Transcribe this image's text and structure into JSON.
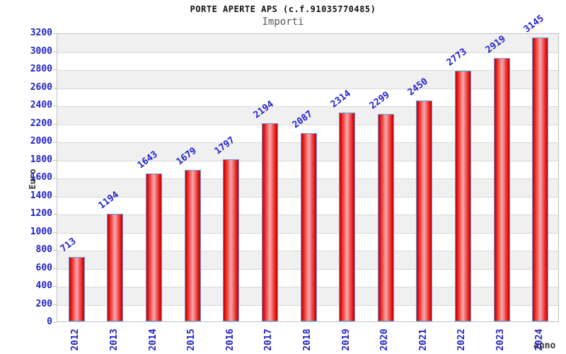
{
  "header": {
    "title": "PORTE APERTE APS (c.f.91035770485)",
    "subtitle": "Importi"
  },
  "chart_data": {
    "type": "bar",
    "title": "PORTE APERTE APS (c.f.91035770485)",
    "subtitle": "Importi",
    "categories": [
      "2012",
      "2013",
      "2014",
      "2015",
      "2016",
      "2017",
      "2018",
      "2019",
      "2020",
      "2021",
      "2022",
      "2023",
      "2024"
    ],
    "values": [
      713,
      1194,
      1643,
      1679,
      1797,
      2194,
      2087,
      2314,
      2299,
      2450,
      2773,
      2919,
      3145
    ],
    "xlabel": "anno",
    "ylabel": "Euro",
    "ylim": [
      0,
      3200
    ],
    "ytick_step": 200,
    "grid": "horizontal-alternating-bands",
    "legend_position": "none",
    "colors": {
      "bar_edge": "#c80000",
      "bar_body": "#e81414",
      "bar_highlight": "#f6abab",
      "bar_border": "#5f9bd8",
      "tick_label": "#2222cc",
      "value_label": "#2222cc",
      "band_gray": "#f0f0f0",
      "gridline": "#d9d9d9",
      "plot_border": "#c2c2c2",
      "title": "#111111",
      "subtitle": "#555555",
      "axis_title": "#333333"
    }
  }
}
